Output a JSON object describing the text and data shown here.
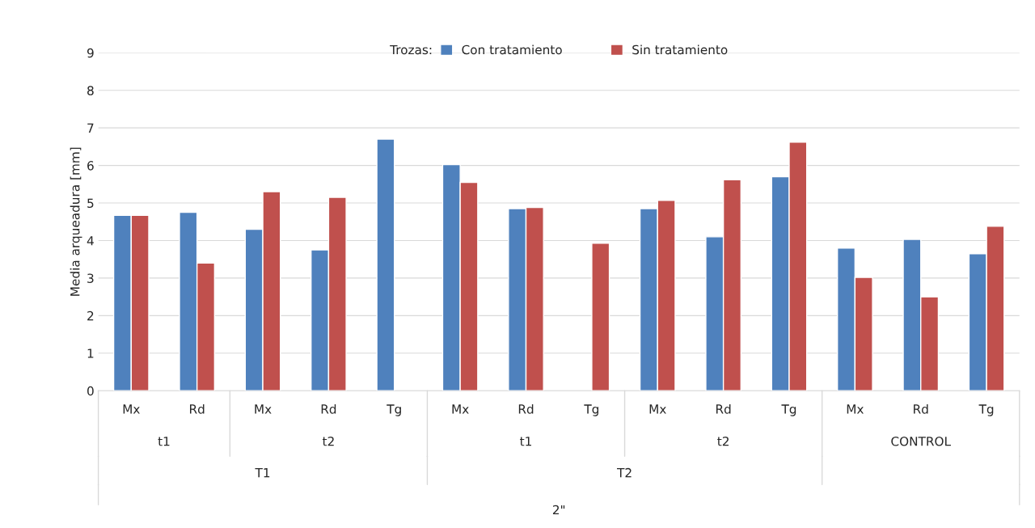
{
  "chart_data": {
    "type": "bar",
    "ylabel": "Media arqueadura [mm]",
    "legend_title": "Trozas:",
    "legend": "top",
    "grid": "y",
    "categories": [
      "Mx",
      "Rd",
      "Mx",
      "Rd",
      "Tg",
      "Mx",
      "Rd",
      "Tg",
      "Mx",
      "Rd",
      "Tg",
      "Mx",
      "Rd",
      "Tg"
    ],
    "series": [
      {
        "name": "Con tratamiento",
        "color": "#4f81bd",
        "values": [
          4.67,
          4.75,
          4.3,
          3.75,
          6.7,
          6.02,
          4.85,
          null,
          4.85,
          4.1,
          5.7,
          3.8,
          4.03,
          3.65
        ]
      },
      {
        "name": "Sin tratamiento",
        "color": "#c0504d",
        "values": [
          4.67,
          3.4,
          5.3,
          5.15,
          null,
          5.55,
          4.88,
          3.93,
          5.07,
          5.62,
          6.62,
          3.02,
          2.5,
          4.38
        ]
      }
    ],
    "ylim": [
      0,
      9
    ],
    "yticks": [
      0,
      1,
      2,
      3,
      4,
      5,
      6,
      7,
      8,
      9
    ],
    "annotations": [
      "t1",
      "t2",
      "t1",
      "t2",
      "CONTROL",
      "T1",
      "T2",
      "2\""
    ]
  }
}
